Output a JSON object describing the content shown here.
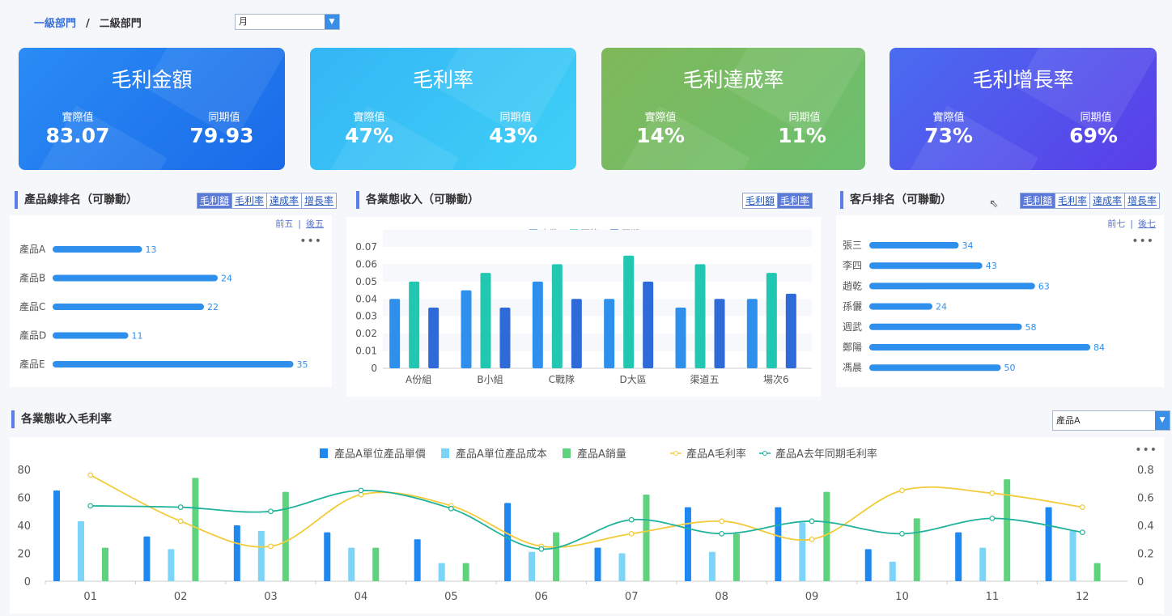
{
  "breadcrumb": {
    "level1": "一級部門",
    "sep": "/",
    "level2": "二級部門"
  },
  "period_select": {
    "value": "月"
  },
  "kpis": [
    {
      "title": "毛利金額",
      "actual_label": "實際值",
      "actual": "83.07",
      "prior_label": "同期值",
      "prior": "79.93",
      "color_from": "#2a8cf5",
      "color_to": "#1a6ae8"
    },
    {
      "title": "毛利率",
      "actual_label": "實際值",
      "actual": "47%",
      "prior_label": "同期值",
      "prior": "43%",
      "color_from": "#34b6f5",
      "color_to": "#3fd0f7"
    },
    {
      "title": "毛利達成率",
      "actual_label": "實際值",
      "actual": "14%",
      "prior_label": "同期值",
      "prior": "11%",
      "color_from": "#7fb85a",
      "color_to": "#6cc070"
    },
    {
      "title": "毛利增長率",
      "actual_label": "實際值",
      "actual": "73%",
      "prior_label": "同期值",
      "prior": "69%",
      "color_from": "#4a6cf0",
      "color_to": "#5a3de8"
    }
  ],
  "product_rank": {
    "title": "產品線排名（可聯動）",
    "tabs": [
      "毛利額",
      "毛利率",
      "達成率",
      "增長率"
    ],
    "active_tab": 0,
    "prev": "前五",
    "next": "後五",
    "more": "•••"
  },
  "business_income": {
    "title": "各業態收入（可聯動）",
    "tabs": [
      "毛利額",
      "毛利率"
    ],
    "active_tab": 1
  },
  "customer_rank": {
    "title": "客戶排名（可聯動）",
    "tabs": [
      "毛利額",
      "毛利率",
      "達成率",
      "增長率"
    ],
    "active_tab": 0,
    "prev": "前七",
    "next": "後七",
    "more": "•••"
  },
  "margin_section": {
    "title": "各業態收入毛利率",
    "product_select": "產品A",
    "more": "•••"
  },
  "chart_data": [
    {
      "type": "bar",
      "orientation": "horizontal",
      "categories": [
        "產品A",
        "產品B",
        "產品C",
        "產品D",
        "產品E"
      ],
      "values": [
        13,
        24,
        22,
        11,
        35
      ],
      "color": "#2f8fec"
    },
    {
      "type": "bar",
      "categories": [
        "A份組",
        "B小組",
        "C戰隊",
        "D大區",
        "渠道五",
        "場次6"
      ],
      "series": [
        {
          "name": "實際",
          "values": [
            0.04,
            0.045,
            0.05,
            0.04,
            0.035,
            0.04
          ],
          "color": "#2f8fec"
        },
        {
          "name": "預算",
          "values": [
            0.05,
            0.055,
            0.06,
            0.065,
            0.06,
            0.055
          ],
          "color": "#21c7b0"
        },
        {
          "name": "同期",
          "values": [
            0.035,
            0.035,
            0.04,
            0.05,
            0.04,
            0.043
          ],
          "color": "#2f6bd8"
        }
      ],
      "ylim": [
        0,
        0.07
      ],
      "yticks": [
        "0",
        "0.01",
        "0.02",
        "0.03",
        "0.04",
        "0.05",
        "0.06",
        "0.07"
      ],
      "legend": "top-center"
    },
    {
      "type": "bar",
      "orientation": "horizontal",
      "categories": [
        "張三",
        "李四",
        "趙乾",
        "孫儷",
        "週武",
        "鄭陽",
        "馮晨"
      ],
      "values": [
        34,
        43,
        63,
        24,
        58,
        84,
        50
      ],
      "color": "#2f8fec"
    },
    {
      "type": "bar+line",
      "categories": [
        "01",
        "02",
        "03",
        "04",
        "05",
        "06",
        "07",
        "08",
        "09",
        "10",
        "11",
        "12"
      ],
      "series": [
        {
          "name": "產品A單位產品單價",
          "kind": "bar",
          "axis": "left",
          "values": [
            65,
            32,
            40,
            35,
            30,
            56,
            24,
            53,
            53,
            23,
            35,
            53
          ],
          "color": "#1e88f0"
        },
        {
          "name": "產品A單位產品成本",
          "kind": "bar",
          "axis": "left",
          "values": [
            43,
            23,
            36,
            24,
            13,
            21,
            20,
            21,
            42,
            14,
            24,
            36
          ],
          "color": "#7cd4f8"
        },
        {
          "name": "產品A銷量",
          "kind": "bar",
          "axis": "left",
          "values": [
            24,
            74,
            64,
            24,
            13,
            35,
            62,
            34,
            64,
            45,
            73,
            13
          ],
          "color": "#5ed27c"
        },
        {
          "name": "產品A毛利率",
          "kind": "line",
          "axis": "right",
          "values": [
            0.76,
            0.43,
            0.25,
            0.62,
            0.54,
            0.25,
            0.34,
            0.43,
            0.3,
            0.65,
            0.63,
            0.53
          ],
          "color": "#f2cb3a"
        },
        {
          "name": "產品A去年同期毛利率",
          "kind": "line",
          "axis": "right",
          "values": [
            0.54,
            0.53,
            0.5,
            0.65,
            0.52,
            0.23,
            0.44,
            0.34,
            0.43,
            0.34,
            0.45,
            0.35
          ],
          "color": "#21b29b"
        }
      ],
      "ylim_left": [
        0,
        80
      ],
      "yticks_left": [
        "0",
        "20",
        "40",
        "60",
        "80"
      ],
      "ylim_right": [
        0,
        0.8
      ],
      "yticks_right": [
        "0",
        "0.2",
        "0.4",
        "0.6",
        "0.8"
      ],
      "legend": "top-center"
    }
  ]
}
